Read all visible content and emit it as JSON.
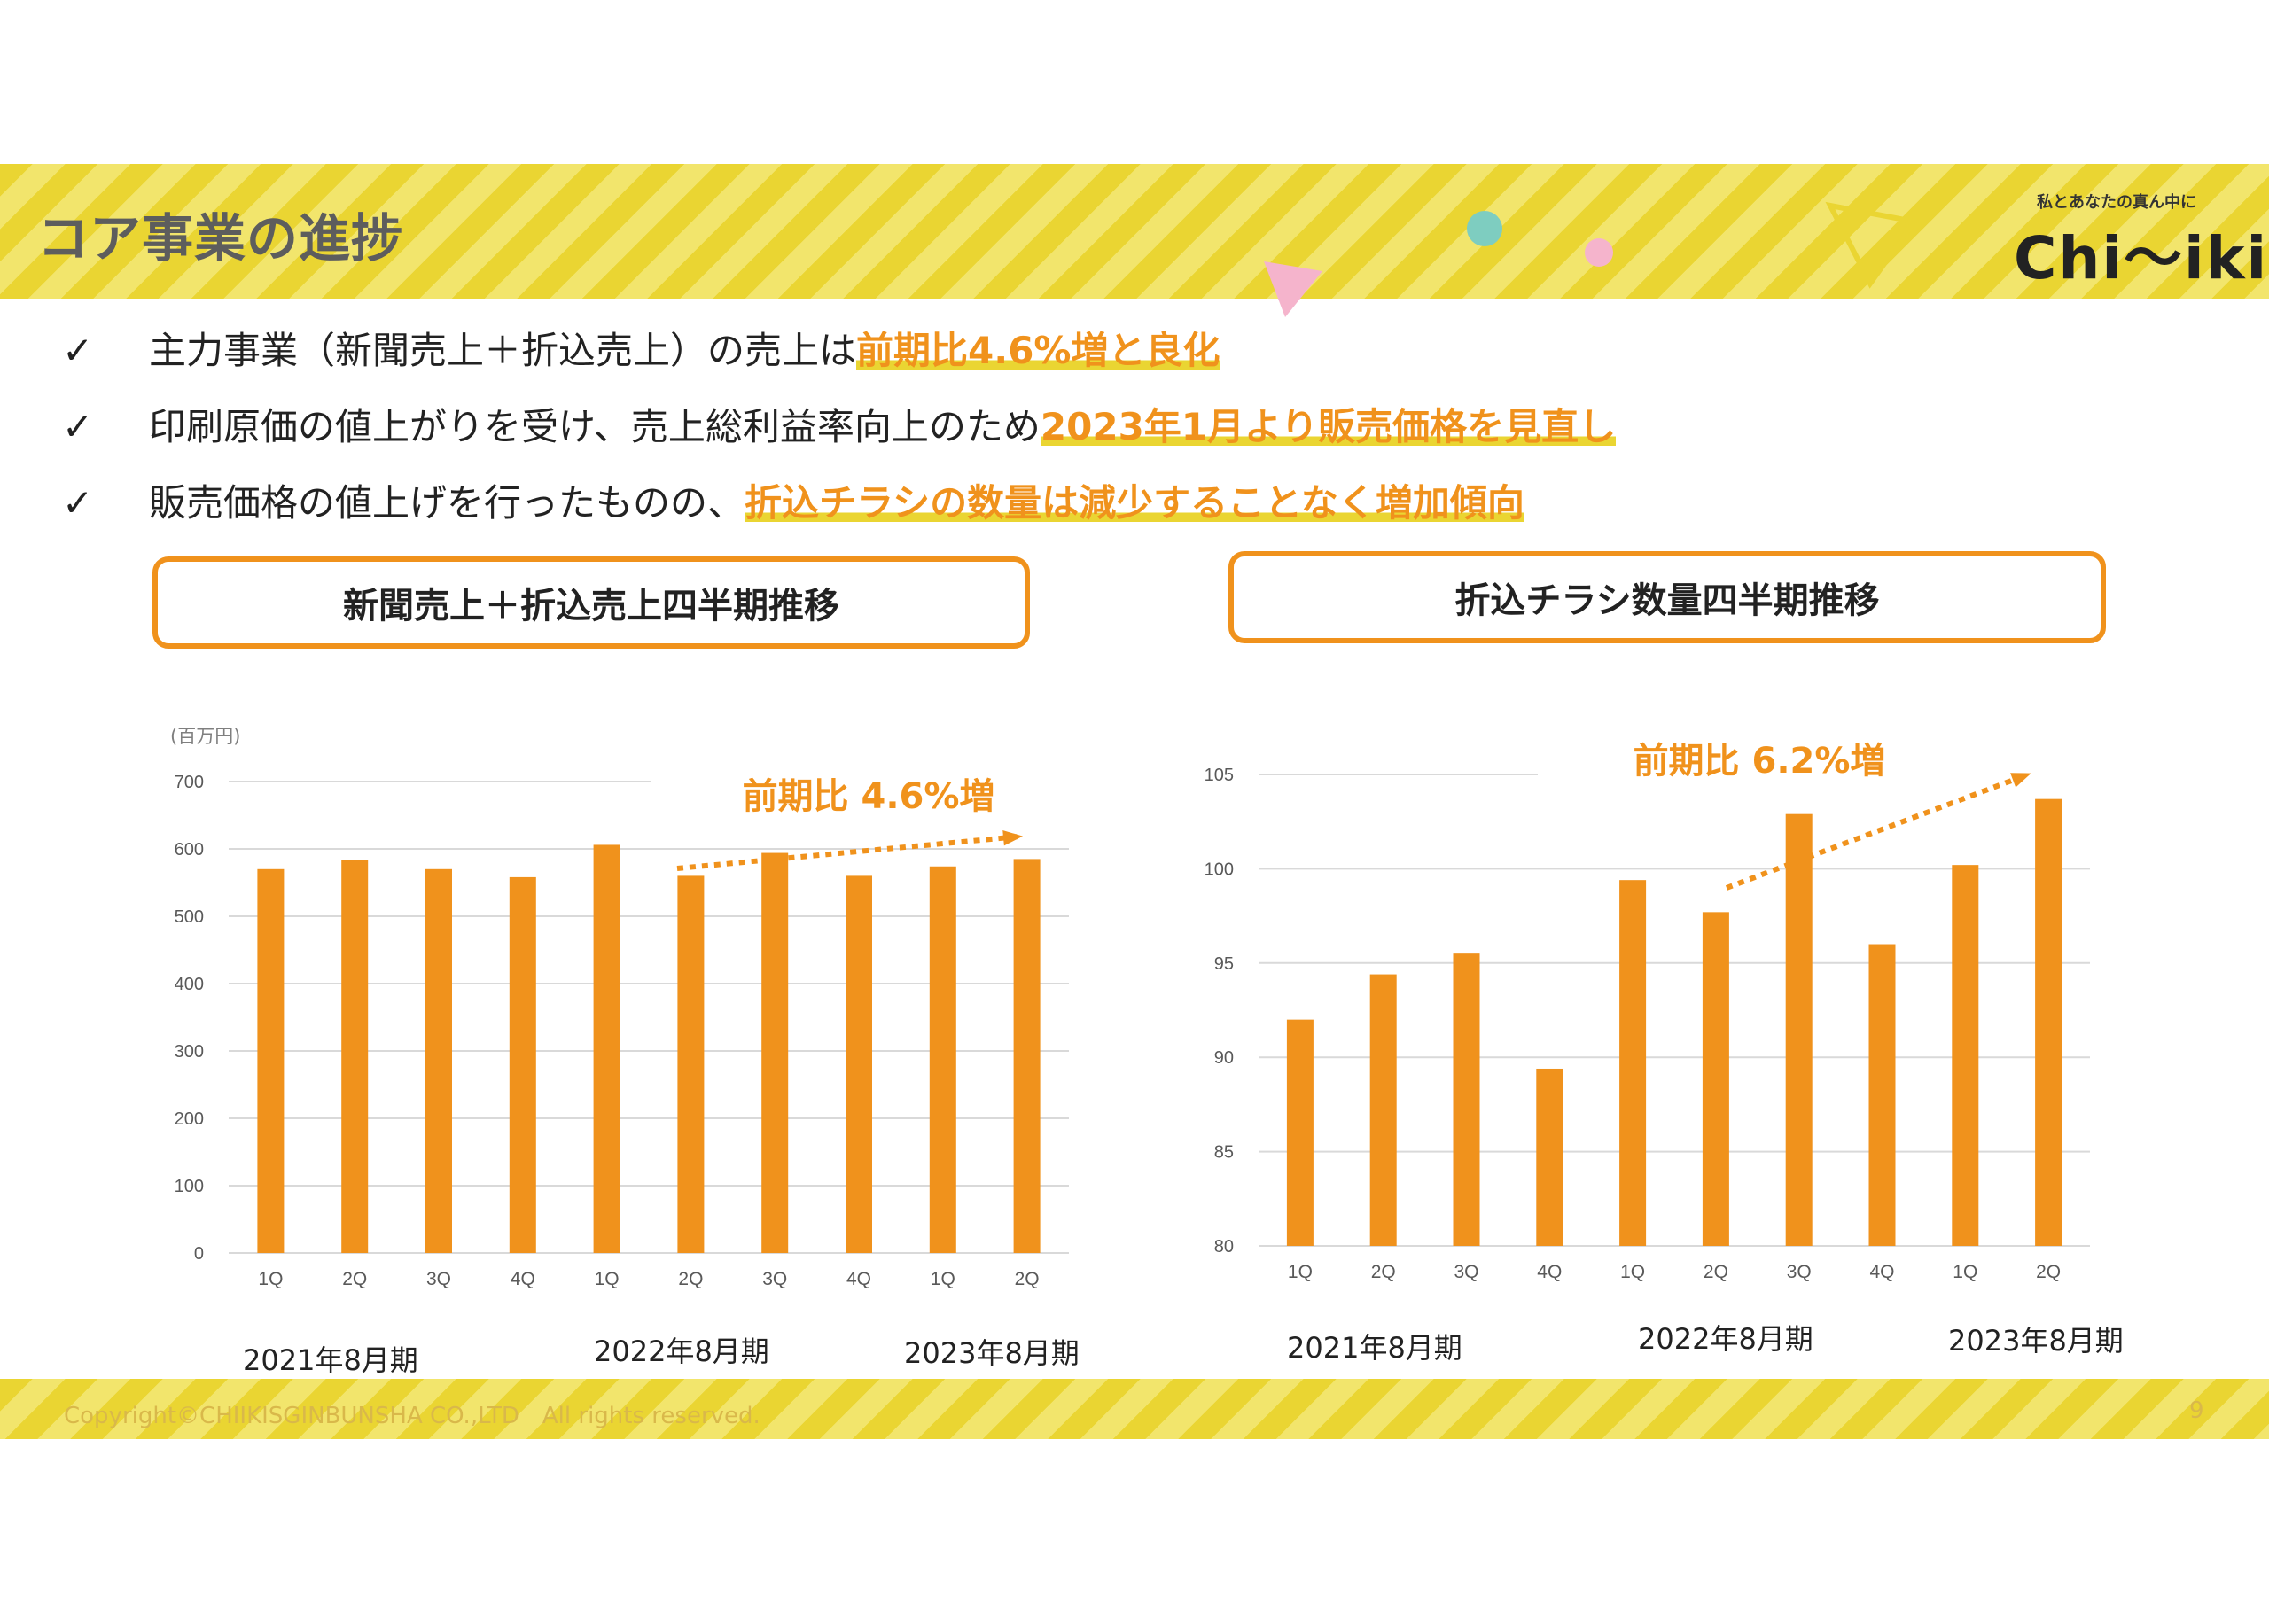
{
  "slide": {
    "title": "コア事業の進捗",
    "logo_tagline": "私とあなたの真ん中に",
    "logo_text": "Chi〜iki",
    "copyright": "Copyright©CHIIKISGINBUNSHA CO.,LTD　All rights reserved.",
    "page_number": "9"
  },
  "bullets": [
    {
      "check": "✓",
      "text": "主力事業（新聞売上＋折込売上）の売上は",
      "highlight": "前期比4.6%増と良化"
    },
    {
      "check": "✓",
      "text": "印刷原価の値上がりを受け、売上総利益率向上のため",
      "highlight": "2023年1月より販売価格を見直し"
    },
    {
      "check": "✓",
      "text": "販売価格の値上げを行ったものの、",
      "highlight": "折込チラシの数量は減少することなく増加傾向"
    }
  ],
  "colors": {
    "accent": "#f0921c",
    "stripe_yellow": "#ead532",
    "grid": "#d9d9d9",
    "title_gray": "#5d5d5d"
  },
  "chart_data": [
    {
      "type": "bar",
      "title": "新聞売上＋折込売上四半期推移",
      "ylabel": "(百万円)",
      "ylim": [
        0,
        700
      ],
      "yticks": [
        0,
        100,
        200,
        300,
        400,
        500,
        600,
        700
      ],
      "categories": [
        "1Q",
        "2Q",
        "3Q",
        "4Q",
        "1Q",
        "2Q",
        "3Q",
        "4Q",
        "1Q",
        "2Q"
      ],
      "values": [
        570,
        583,
        570,
        558,
        606,
        560,
        594,
        560,
        574,
        585
      ],
      "period_labels": [
        "2021年8月期",
        "2022年8月期",
        "2023年8月期"
      ],
      "annotation": "前期比 4.6%増",
      "grid": true
    },
    {
      "type": "bar",
      "title": "折込チラシ数量四半期推移",
      "ylim": [
        80,
        105
      ],
      "yticks": [
        80,
        85,
        90,
        95,
        100,
        105
      ],
      "categories": [
        "1Q",
        "2Q",
        "3Q",
        "4Q",
        "1Q",
        "2Q",
        "3Q",
        "4Q",
        "1Q",
        "2Q"
      ],
      "values": [
        92.0,
        94.4,
        95.5,
        89.4,
        99.4,
        97.7,
        102.9,
        96.0,
        100.2,
        103.7
      ],
      "period_labels": [
        "2021年8月期",
        "2022年8月期",
        "2023年8月期"
      ],
      "annotation": "前期比 6.2%増",
      "grid": true
    }
  ]
}
